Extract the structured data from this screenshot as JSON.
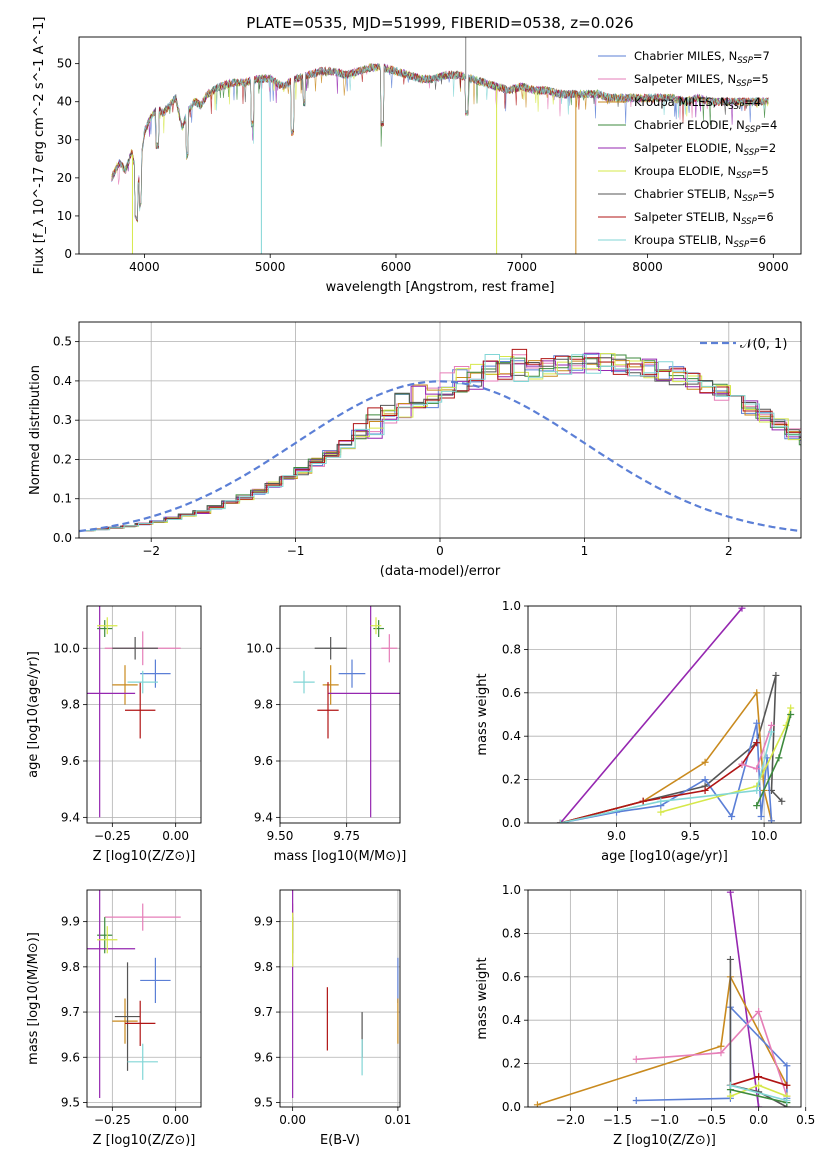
{
  "figure_title": "PLATE=0535, MJD=51999, FIBERID=0538, z=0.026",
  "colors": {
    "Chabrier MILES": "#5b7fd6",
    "Salpeter MILES": "#e67eb8",
    "Kroupa MILES": "#c98a1e",
    "Chabrier ELODIE": "#3d8a3d",
    "Salpeter ELODIE": "#9527b0",
    "Kroupa ELODIE": "#d6e84a",
    "Chabrier STELIB": "#555555",
    "Salpeter STELIB": "#b01515",
    "Kroupa STELIB": "#82d6d6",
    "gaussian": "#5b7fd6",
    "orange_pink": "#e07b20"
  },
  "chart_data": [
    {
      "type": "line",
      "title": "PLATE=0535, MJD=51999, FIBERID=0538, z=0.026",
      "xlabel": "wavelength [Angstrom, rest frame]",
      "ylabel": "Flux [f_λ 10^-17 erg cm^-2 s^-1 A^-1]",
      "xlim": [
        3480,
        9220
      ],
      "ylim": [
        0,
        57
      ],
      "xticks": [
        4000,
        5000,
        6000,
        7000,
        8000,
        9000
      ],
      "yticks": [
        0,
        10,
        20,
        30,
        40,
        50
      ],
      "grid": false,
      "legend_placement": "top-right",
      "spectrum_envelope": {
        "x": [
          3740,
          3800,
          3850,
          3900,
          3950,
          4000,
          4050,
          4100,
          4150,
          4200,
          4250,
          4300,
          4350,
          4400,
          4450,
          4500,
          4600,
          4700,
          4800,
          4900,
          5000,
          5100,
          5200,
          5300,
          5400,
          5500,
          5600,
          5700,
          5800,
          5900,
          6000,
          6100,
          6200,
          6300,
          6400,
          6500,
          6600,
          6700,
          6800,
          6900,
          7000,
          7100,
          7200,
          7300,
          7400,
          7500,
          7600,
          7700,
          7800,
          7900,
          8000,
          8100,
          8200,
          8300,
          8400,
          8500,
          8600,
          8700,
          8800,
          8900,
          8960
        ],
        "y": [
          20,
          24,
          22,
          27,
          18,
          32,
          36,
          38,
          37,
          39,
          41,
          33,
          38,
          40,
          39,
          42,
          44,
          45,
          45,
          46,
          46,
          44,
          46,
          47,
          48,
          48,
          47,
          48,
          49,
          49,
          48,
          47,
          46,
          46,
          47,
          47,
          46,
          45,
          44,
          43,
          44,
          43,
          43,
          42,
          42,
          42,
          42,
          41,
          41,
          41,
          41,
          41,
          41,
          40,
          41,
          40,
          40,
          40,
          40,
          40,
          40
        ]
      },
      "series": [
        {
          "name": "Chabrier MILES, N_SSP=7"
        },
        {
          "name": "Salpeter MILES, N_SSP=5"
        },
        {
          "name": "Kroupa MILES, N_SSP=4"
        },
        {
          "name": "Chabrier ELODIE, N_SSP=4"
        },
        {
          "name": "Salpeter ELODIE, N_SSP=2"
        },
        {
          "name": "Kroupa ELODIE, N_SSP=5"
        },
        {
          "name": "Chabrier STELIB, N_SSP=5"
        },
        {
          "name": "Salpeter STELIB, N_SSP=6"
        },
        {
          "name": "Kroupa STELIB, N_SSP=6"
        }
      ],
      "legend": [
        {
          "name": "Chabrier MILES",
          "nssp": "7"
        },
        {
          "name": "Salpeter MILES",
          "nssp": "5"
        },
        {
          "name": "Kroupa MILES",
          "nssp": "4"
        },
        {
          "name": "Chabrier ELODIE",
          "nssp": "4"
        },
        {
          "name": "Salpeter ELODIE",
          "nssp": "2"
        },
        {
          "name": "Kroupa ELODIE",
          "nssp": "5"
        },
        {
          "name": "Chabrier STELIB",
          "nssp": "5"
        },
        {
          "name": "Salpeter STELIB",
          "nssp": "6"
        },
        {
          "name": "Kroupa STELIB",
          "nssp": "6"
        }
      ]
    },
    {
      "type": "histogram",
      "xlabel": "(data-model)/error",
      "ylabel": "Normed distribution",
      "xlim": [
        -2.5,
        2.5
      ],
      "ylim": [
        0,
        0.55
      ],
      "xticks": [
        -2,
        -1,
        0,
        1,
        2
      ],
      "yticks": [
        0.0,
        0.1,
        0.2,
        0.3,
        0.4,
        0.5
      ],
      "grid": true,
      "legend_placement": "top-right",
      "legend": [
        "𝒩(0, 1)"
      ],
      "bin_width": 0.1,
      "bin_start": -2.5,
      "base_heights": [
        0.02,
        0.022,
        0.026,
        0.03,
        0.036,
        0.042,
        0.05,
        0.058,
        0.066,
        0.078,
        0.09,
        0.104,
        0.118,
        0.136,
        0.152,
        0.17,
        0.192,
        0.214,
        0.236,
        0.26,
        0.28,
        0.3,
        0.318,
        0.34,
        0.36,
        0.372,
        0.386,
        0.398,
        0.41,
        0.42,
        0.425,
        0.43,
        0.438,
        0.44,
        0.442,
        0.444,
        0.446,
        0.44,
        0.438,
        0.432,
        0.424,
        0.414,
        0.4,
        0.388,
        0.37,
        0.35,
        0.33,
        0.31,
        0.288,
        0.266,
        0.244,
        0.22,
        0.2,
        0.18,
        0.16,
        0.142,
        0.124,
        0.108,
        0.094,
        0.08,
        0.068,
        0.058,
        0.05,
        0.044,
        0.038,
        0.032,
        0.028,
        0.024,
        0.02
      ],
      "gaussian": {
        "name": "𝒩(0, 1)",
        "mean": 0,
        "sigma": 1
      }
    },
    {
      "type": "errorbar",
      "xlabel": "Z [log10(Z/Z⊙)]",
      "ylabel": "age  [log10(age/yr)]",
      "xlim": [
        -0.35,
        0.1
      ],
      "ylim": [
        9.38,
        10.15
      ],
      "xticks": [
        -0.25,
        0.0
      ],
      "yticks": [
        9.4,
        9.6,
        9.8,
        10.0
      ],
      "points": [
        {
          "series": "Chabrier MILES",
          "x": -0.08,
          "y": 9.91,
          "xerr": 0.06,
          "yerr": 0.05
        },
        {
          "series": "Salpeter MILES",
          "x": -0.13,
          "y": 10.0,
          "xerr": 0.15,
          "yerr": 0.06
        },
        {
          "series": "Kroupa MILES",
          "x": -0.2,
          "y": 9.87,
          "xerr": 0.05,
          "yerr": 0.07
        },
        {
          "series": "Chabrier ELODIE",
          "x": -0.28,
          "y": 10.07,
          "xerr": 0.03,
          "yerr": 0.03
        },
        {
          "series": "Salpeter ELODIE",
          "x": -0.3,
          "y": 9.84,
          "xerr": 0.14,
          "yerr": 0.44
        },
        {
          "series": "Kroupa ELODIE",
          "x": -0.27,
          "y": 10.08,
          "xerr": 0.04,
          "yerr": 0.03
        },
        {
          "series": "Chabrier STELIB",
          "x": -0.16,
          "y": 10.0,
          "xerr": 0.09,
          "yerr": 0.04
        },
        {
          "series": "Salpeter STELIB",
          "x": -0.14,
          "y": 9.78,
          "xerr": 0.06,
          "yerr": 0.1
        },
        {
          "series": "Kroupa STELIB",
          "x": -0.13,
          "y": 9.88,
          "xerr": 0.06,
          "yerr": 0.04
        }
      ]
    },
    {
      "type": "errorbar",
      "xlabel": "mass [log10(M/M⊙)]",
      "ylabel": "",
      "xlim": [
        9.5,
        9.95
      ],
      "ylim": [
        9.38,
        10.15
      ],
      "xticks": [
        9.5,
        9.75
      ],
      "yticks": [
        9.4,
        9.6,
        9.8,
        10.0
      ],
      "points": [
        {
          "series": "Chabrier MILES",
          "x": 9.77,
          "y": 9.91,
          "xerr": 0.05,
          "yerr": 0.05
        },
        {
          "series": "Salpeter MILES",
          "x": 9.91,
          "y": 10.0,
          "xerr": 0.03,
          "yerr": 0.05
        },
        {
          "series": "Kroupa MILES",
          "x": 9.69,
          "y": 9.87,
          "xerr": 0.03,
          "yerr": 0.07
        },
        {
          "series": "Chabrier ELODIE",
          "x": 9.87,
          "y": 10.07,
          "xerr": 0.02,
          "yerr": 0.03
        },
        {
          "series": "Salpeter ELODIE",
          "x": 9.84,
          "y": 9.84,
          "xerr": 0.16,
          "yerr": 0.44
        },
        {
          "series": "Kroupa ELODIE",
          "x": 9.86,
          "y": 10.08,
          "xerr": 0.02,
          "yerr": 0.03
        },
        {
          "series": "Chabrier STELIB",
          "x": 9.69,
          "y": 10.0,
          "xerr": 0.06,
          "yerr": 0.04
        },
        {
          "series": "Salpeter STELIB",
          "x": 9.68,
          "y": 9.78,
          "xerr": 0.04,
          "yerr": 0.1
        },
        {
          "series": "Kroupa STELIB",
          "x": 9.59,
          "y": 9.88,
          "xerr": 0.04,
          "yerr": 0.04
        }
      ]
    },
    {
      "type": "line",
      "xlabel": "age  [log10(age/yr)]",
      "ylabel": "mass weight",
      "xlim": [
        8.4,
        10.25
      ],
      "ylim": [
        0,
        1.0
      ],
      "xticks": [
        9.0,
        9.5,
        10.0
      ],
      "yticks": [
        0.0,
        0.2,
        0.4,
        0.6,
        0.8,
        1.0
      ],
      "grid": true,
      "series": [
        {
          "series": "Salpeter ELODIE",
          "x": [
            8.62,
            9.85
          ],
          "y": [
            0.0,
            0.99
          ]
        },
        {
          "series": "Chabrier STELIB",
          "x": [
            8.62,
            9.18,
            9.6,
            9.95,
            10.08,
            10.05,
            10.12
          ],
          "y": [
            0.0,
            0.1,
            0.17,
            0.37,
            0.68,
            0.15,
            0.1
          ]
        },
        {
          "series": "Kroupa MILES",
          "x": [
            8.62,
            9.18,
            9.6,
            9.95,
            10.0,
            10.05
          ],
          "y": [
            0.0,
            0.1,
            0.28,
            0.6,
            0.15,
            0.01
          ]
        },
        {
          "series": "Chabrier MILES",
          "x": [
            8.62,
            9.0,
            9.3,
            9.6,
            9.78,
            9.95,
            9.98,
            10.02,
            10.05
          ],
          "y": [
            0.0,
            0.05,
            0.08,
            0.2,
            0.03,
            0.46,
            0.03,
            0.3,
            0.01
          ]
        },
        {
          "series": "Salpeter STELIB",
          "x": [
            8.62,
            9.18,
            9.6,
            9.85,
            9.95
          ],
          "y": [
            0.0,
            0.1,
            0.15,
            0.27,
            0.37
          ]
        },
        {
          "series": "Salpeter MILES",
          "x": [
            9.85,
            9.95,
            10.05
          ],
          "y": [
            0.27,
            0.25,
            0.45
          ]
        },
        {
          "series": "Kroupa ELODIE",
          "x": [
            9.3,
            9.95,
            10.15,
            10.18
          ],
          "y": [
            0.05,
            0.17,
            0.45,
            0.53
          ]
        },
        {
          "series": "Chabrier ELODIE",
          "x": [
            9.95,
            10.1,
            10.18
          ],
          "y": [
            0.08,
            0.3,
            0.5
          ]
        },
        {
          "series": "Kroupa STELIB",
          "x": [
            8.62,
            9.3,
            9.95,
            10.05
          ],
          "y": [
            0.0,
            0.1,
            0.15,
            0.42
          ]
        }
      ]
    },
    {
      "type": "errorbar",
      "xlabel": "Z [log10(Z/Z⊙)]",
      "ylabel": "mass [log10(M/M⊙)]",
      "xlim": [
        -0.35,
        0.1
      ],
      "ylim": [
        9.49,
        9.97
      ],
      "xticks": [
        -0.25,
        0.0
      ],
      "yticks": [
        9.5,
        9.6,
        9.7,
        9.8,
        9.9
      ],
      "points": [
        {
          "series": "Chabrier MILES",
          "x": -0.08,
          "y": 9.77,
          "xerr": 0.06,
          "yerr": 0.05
        },
        {
          "series": "Salpeter MILES",
          "x": -0.13,
          "y": 9.91,
          "xerr": 0.15,
          "yerr": 0.03
        },
        {
          "series": "Kroupa MILES",
          "x": -0.2,
          "y": 9.68,
          "xerr": 0.05,
          "yerr": 0.05
        },
        {
          "series": "Chabrier ELODIE",
          "x": -0.28,
          "y": 9.87,
          "xerr": 0.03,
          "yerr": 0.04
        },
        {
          "series": "Salpeter ELODIE",
          "x": -0.3,
          "y": 9.84,
          "xerr": 0.14,
          "yerr": 0.33
        },
        {
          "series": "Kroupa ELODIE",
          "x": -0.27,
          "y": 9.86,
          "xerr": 0.04,
          "yerr": 0.03
        },
        {
          "series": "Chabrier STELIB",
          "x": -0.19,
          "y": 9.69,
          "xerr": 0.05,
          "yerr": 0.12
        },
        {
          "series": "Salpeter STELIB",
          "x": -0.14,
          "y": 9.675,
          "xerr": 0.06,
          "yerr": 0.05
        },
        {
          "series": "Kroupa STELIB",
          "x": -0.13,
          "y": 9.59,
          "xerr": 0.06,
          "yerr": 0.04
        }
      ]
    },
    {
      "type": "errorbar",
      "xlabel": "E(B-V)",
      "ylabel": "",
      "xlim": [
        -0.0012,
        0.0102
      ],
      "ylim": [
        9.49,
        9.97
      ],
      "xticks": [
        0.0,
        0.01
      ],
      "yticks": [
        9.5,
        9.6,
        9.7,
        9.8,
        9.9
      ],
      "points": [
        {
          "series": "Chabrier MILES",
          "x": 0.01,
          "y": 9.77,
          "xerr": 0,
          "yerr": 0.05
        },
        {
          "series": "Salpeter MILES",
          "x": 0.0,
          "y": 9.91,
          "xerr": 0,
          "yerr": 0.03
        },
        {
          "series": "Kroupa MILES",
          "x": 0.01,
          "y": 9.68,
          "xerr": 0,
          "yerr": 0.05
        },
        {
          "series": "Chabrier ELODIE",
          "x": 0.0,
          "y": 9.87,
          "xerr": 0,
          "yerr": 0.04
        },
        {
          "series": "Salpeter ELODIE",
          "x": 0.0,
          "y": 9.84,
          "xerr": 0,
          "yerr": 0.33
        },
        {
          "series": "Kroupa ELODIE",
          "x": 0.0,
          "y": 9.86,
          "xerr": 0,
          "yerr": 0.06
        },
        {
          "series": "Chabrier STELIB",
          "x": 0.0066,
          "y": 9.65,
          "xerr": 0,
          "yerr": 0.05
        },
        {
          "series": "Salpeter STELIB",
          "x": 0.0033,
          "y": 9.685,
          "xerr": 0,
          "yerr": 0.07
        },
        {
          "series": "Kroupa STELIB",
          "x": 0.0066,
          "y": 9.6,
          "xerr": 0,
          "yerr": 0.04
        }
      ]
    },
    {
      "type": "line",
      "xlabel": "Z [log10(Z/Z⊙)]",
      "ylabel": "mass weight",
      "xlim": [
        -2.45,
        0.45
      ],
      "ylim": [
        0,
        1.0
      ],
      "xticks": [
        -2.0,
        -1.5,
        -1.0,
        -0.5,
        0.0,
        0.5
      ],
      "yticks": [
        0.0,
        0.2,
        0.4,
        0.6,
        0.8,
        1.0
      ],
      "grid": true,
      "series": [
        {
          "series": "Salpeter ELODIE",
          "x": [
            -0.3,
            0.0
          ],
          "y": [
            0.99,
            0.0
          ]
        },
        {
          "series": "Kroupa MILES",
          "x": [
            -2.35,
            -0.4,
            -0.3,
            0.3
          ],
          "y": [
            0.01,
            0.28,
            0.6,
            0.1
          ]
        },
        {
          "series": "Chabrier MILES",
          "x": [
            -1.3,
            -0.3,
            -0.3,
            0.3,
            0.3
          ],
          "y": [
            0.03,
            0.04,
            0.46,
            0.19,
            0.04
          ]
        },
        {
          "series": "Salpeter MILES",
          "x": [
            -1.3,
            -0.4,
            0.0,
            0.3
          ],
          "y": [
            0.22,
            0.25,
            0.44,
            0.05
          ]
        },
        {
          "series": "Chabrier STELIB",
          "x": [
            -0.3,
            -0.3,
            0.0,
            0.3
          ],
          "y": [
            0.68,
            0.1,
            0.07,
            0.0
          ]
        },
        {
          "series": "Salpeter STELIB",
          "x": [
            -0.3,
            0.0,
            0.3
          ],
          "y": [
            0.1,
            0.14,
            0.1
          ]
        },
        {
          "series": "Kroupa ELODIE",
          "x": [
            -0.3,
            0.0,
            0.3
          ],
          "y": [
            0.05,
            0.1,
            0.05
          ]
        },
        {
          "series": "Chabrier ELODIE",
          "x": [
            -0.3,
            0.3
          ],
          "y": [
            0.08,
            0.02
          ]
        },
        {
          "series": "Kroupa STELIB",
          "x": [
            -0.3,
            0.3
          ],
          "y": [
            0.1,
            0.03
          ]
        }
      ]
    }
  ]
}
